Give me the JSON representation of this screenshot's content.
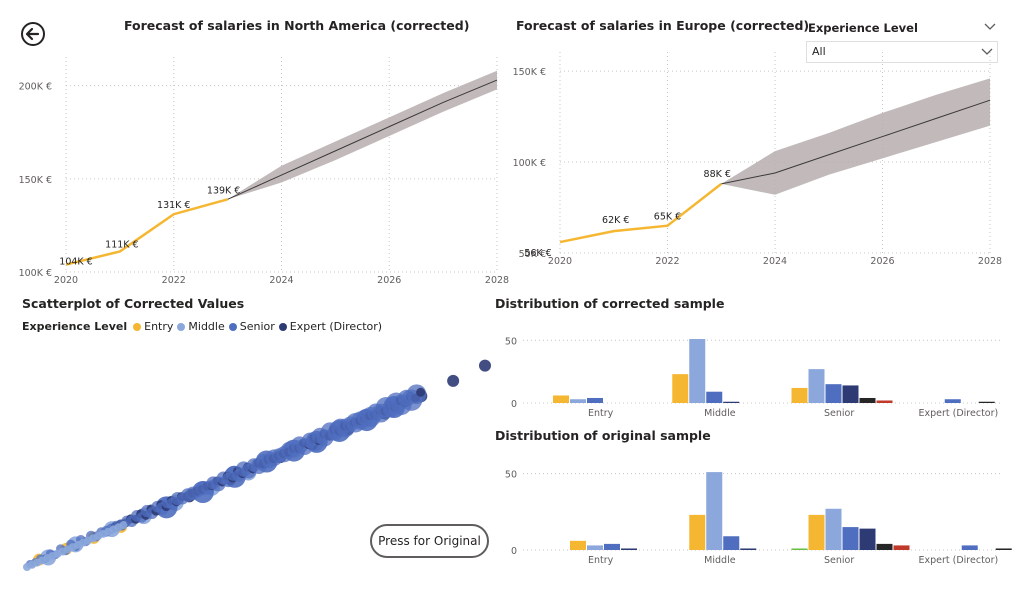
{
  "nav": {
    "back_icon": "back-arrow-icon"
  },
  "slicer": {
    "title": "Experience Level",
    "value": "All",
    "icon": "chevron-down-icon"
  },
  "colors": {
    "forecast_line": "#F5B731",
    "forecast_band": "#B7AEAE",
    "entry": "#F5B731",
    "middle": "#8BA7DB",
    "senior": "#4F6EBF",
    "expert": "#2E3A73",
    "extra_dark": "#262626",
    "extra_red": "#C0392B",
    "extra_green": "#6DBE45",
    "grid": "#C8C6C4"
  },
  "legend": {
    "title": "Experience Level",
    "items": [
      {
        "label": "Entry",
        "color": "#F5B731"
      },
      {
        "label": "Middle",
        "color": "#8BA7DB"
      },
      {
        "label": "Senior",
        "color": "#4F6EBF"
      },
      {
        "label": "Expert (Director)",
        "color": "#2E3A73"
      }
    ]
  },
  "original_button": {
    "label": "Press for Original"
  },
  "chart_data": [
    {
      "type": "line",
      "title": "Forecast of salaries in North America (corrected)",
      "x_ticks": [
        "2020",
        "2022",
        "2024",
        "2026",
        "2028"
      ],
      "y_ticks": [
        "100K €",
        "150K €",
        "200K €"
      ],
      "ylim": [
        100000,
        210000
      ],
      "xlim": [
        2020,
        2028
      ],
      "actual": {
        "x": [
          2020,
          2021,
          2022,
          2023
        ],
        "y": [
          104000,
          111000,
          131000,
          139000
        ],
        "labels": [
          "104K €",
          "111K €",
          "131K €",
          "139K €"
        ]
      },
      "forecast": {
        "x": [
          2023,
          2024,
          2025,
          2026,
          2027,
          2028
        ],
        "y": [
          139000,
          152000,
          165000,
          178000,
          191000,
          203000
        ],
        "upper": [
          139000,
          157000,
          170000,
          183000,
          196000,
          208000
        ],
        "lower": [
          139000,
          148000,
          160000,
          173000,
          186000,
          198000
        ]
      }
    },
    {
      "type": "line",
      "title": "Forecast of salaries in Europe (corrected)",
      "x_ticks": [
        "2020",
        "2022",
        "2024",
        "2026",
        "2028"
      ],
      "y_ticks": [
        "50K €",
        "100K €",
        "150K €"
      ],
      "ylim": [
        50000,
        155000
      ],
      "xlim": [
        2020,
        2028
      ],
      "actual": {
        "x": [
          2020,
          2021,
          2022,
          2023
        ],
        "y": [
          56000,
          62000,
          65000,
          88000
        ],
        "labels": [
          "56K €",
          "62K €",
          "65K €",
          "88K €"
        ]
      },
      "forecast": {
        "x": [
          2023,
          2024,
          2025,
          2026,
          2027,
          2028
        ],
        "y": [
          88000,
          94000,
          104000,
          114000,
          124000,
          134000
        ],
        "upper": [
          88000,
          106000,
          116000,
          127000,
          137000,
          146000
        ],
        "lower": [
          88000,
          82000,
          93000,
          102000,
          111000,
          120000
        ]
      }
    },
    {
      "type": "scatter",
      "title": "Scatterplot of Corrected Values",
      "series": [
        {
          "name": "Entry",
          "x": [
            2,
            8,
            14,
            20
          ],
          "y": [
            2,
            7,
            12,
            17
          ]
        },
        {
          "name": "Middle",
          "x": [
            4,
            10,
            18,
            25,
            32,
            40,
            48
          ],
          "y": [
            3,
            9,
            16,
            22,
            28,
            35,
            42
          ]
        },
        {
          "name": "Senior",
          "x": [
            30,
            38,
            45,
            52,
            58,
            63,
            68,
            74,
            80
          ],
          "y": [
            26,
            33,
            40,
            47,
            52,
            56,
            61,
            66,
            72
          ]
        },
        {
          "name": "Expert (Director)",
          "x": [
            35,
            44,
            55,
            62,
            70,
            78,
            86,
            93,
            100
          ],
          "y": [
            31,
            39,
            49,
            55,
            62,
            69,
            77,
            84,
            91
          ]
        }
      ]
    },
    {
      "type": "bar",
      "title": "Distribution of corrected sample",
      "categories": [
        "Entry",
        "Middle",
        "Senior",
        "Expert (Director)"
      ],
      "y_ticks": [
        "0",
        "50"
      ],
      "ylim": [
        0,
        55
      ],
      "series": [
        {
          "color": "#F5B731",
          "values": [
            6,
            23,
            12,
            0
          ]
        },
        {
          "color": "#8BA7DB",
          "values": [
            3,
            51,
            27,
            0
          ]
        },
        {
          "color": "#4F6EBF",
          "values": [
            4,
            9,
            15,
            3
          ]
        },
        {
          "color": "#2E3A73",
          "values": [
            0,
            1,
            14,
            0
          ]
        },
        {
          "color": "#262626",
          "values": [
            0,
            0,
            4,
            1
          ]
        },
        {
          "color": "#C0392B",
          "values": [
            0,
            0,
            2,
            0
          ]
        }
      ]
    },
    {
      "type": "bar",
      "title": "Distribution of original sample",
      "categories": [
        "Entry",
        "Middle",
        "Senior",
        "Expert (Director)"
      ],
      "y_ticks": [
        "0",
        "50"
      ],
      "ylim": [
        0,
        55
      ],
      "series": [
        {
          "color": "#6DBE45",
          "values": [
            0,
            0,
            1,
            0
          ]
        },
        {
          "color": "#F5B731",
          "values": [
            6,
            23,
            23,
            0
          ]
        },
        {
          "color": "#8BA7DB",
          "values": [
            3,
            51,
            27,
            0
          ]
        },
        {
          "color": "#4F6EBF",
          "values": [
            4,
            9,
            15,
            3
          ]
        },
        {
          "color": "#2E3A73",
          "values": [
            1,
            1,
            14,
            0
          ]
        },
        {
          "color": "#262626",
          "values": [
            0,
            0,
            4,
            1
          ]
        },
        {
          "color": "#C0392B",
          "values": [
            0,
            0,
            3,
            0
          ]
        }
      ]
    }
  ]
}
